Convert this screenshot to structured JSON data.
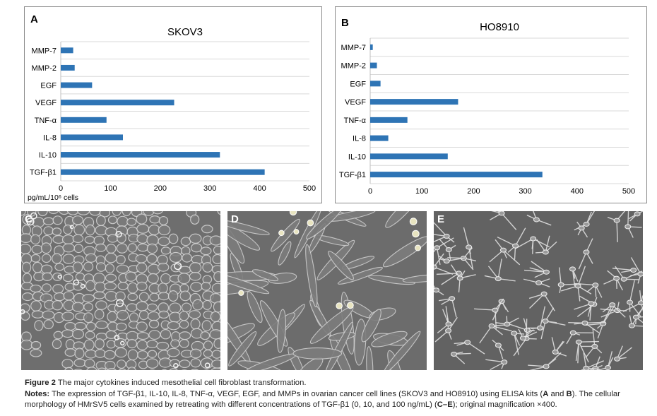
{
  "chart_data": [
    {
      "type": "bar",
      "orientation": "horizontal",
      "panel_label": "A",
      "title": "SKOV3",
      "categories": [
        "MMP-7",
        "MMP-2",
        "EGF",
        "VEGF",
        "TNF-α",
        "IL-8",
        "IL-10",
        "TGF-β1"
      ],
      "values": [
        25,
        28,
        63,
        228,
        92,
        125,
        320,
        410
      ],
      "xlabel": "pg/mL/10⁶ cells",
      "xlim": [
        0,
        500
      ],
      "xticks": [
        "0",
        "100",
        "200",
        "300",
        "400",
        "500"
      ],
      "grid": true,
      "bar_color": "#2e74b5"
    },
    {
      "type": "bar",
      "orientation": "horizontal",
      "panel_label": "B",
      "title": "HO8910",
      "categories": [
        "MMP-7",
        "MMP-2",
        "EGF",
        "VEGF",
        "TNF-α",
        "IL-8",
        "IL-10",
        "TGF-β1"
      ],
      "values": [
        5,
        13,
        20,
        170,
        72,
        35,
        150,
        333
      ],
      "xlabel": "",
      "xlim": [
        0,
        500
      ],
      "xticks": [
        "0",
        "100",
        "200",
        "300",
        "400",
        "500"
      ],
      "grid": true,
      "bar_color": "#2e74b5"
    }
  ],
  "photos": [
    {
      "label": "C",
      "morphology": "cobblestone"
    },
    {
      "label": "D",
      "morphology": "spindle"
    },
    {
      "label": "E",
      "morphology": "fibroblast-network"
    }
  ],
  "caption": {
    "figure_label": "Figure 2",
    "figure_title": "The major cytokines induced mesothelial cell fibroblast transformation.",
    "notes_label": "Notes:",
    "notes_part1": "The expression of TGF-β1, IL-10, IL-8, TNF-α, VEGF, EGF, and MMPs in ovarian cancer cell lines (SKOV3 and HO8910) using ELISA kits (",
    "notes_ref1": "A",
    "notes_and": " and ",
    "notes_ref2": "B",
    "notes_part2": "). The cellular morphology of HMrSV5 cells examined by retreating with different concentrations of TGF-β1 (0, 10, and 100 ng/mL) (",
    "notes_ref3": "C–E",
    "notes_part3": "); original magnification ×400."
  }
}
